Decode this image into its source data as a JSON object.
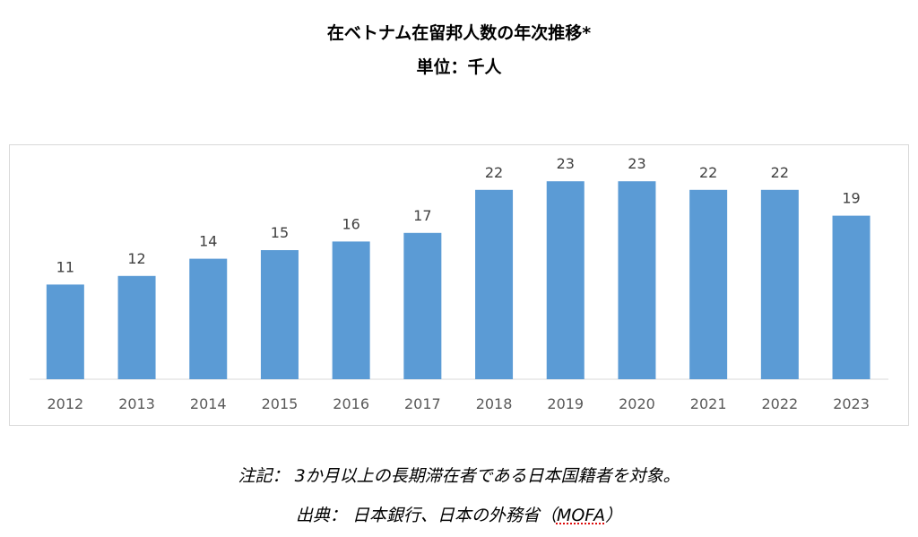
{
  "chart_data": {
    "type": "bar",
    "title": "在ベトナム在留邦人数の年次推移*",
    "subtitle": "単位：千人",
    "categories": [
      "2012",
      "2013",
      "2014",
      "2015",
      "2016",
      "2017",
      "2018",
      "2019",
      "2020",
      "2021",
      "2022",
      "2023"
    ],
    "values": [
      11,
      12,
      14,
      15,
      16,
      17,
      22,
      23,
      23,
      22,
      22,
      19
    ],
    "xlabel": "",
    "ylabel": "",
    "ylim": [
      0,
      25
    ],
    "grid": false,
    "legend": "none",
    "bar_color": "#5b9bd5"
  },
  "notes": {
    "note_label": "注記：",
    "note_text": "3か月以上の長期滞在者である日本国籍者を対象。",
    "source_label": "出典：",
    "source_text": "日本銀行、日本の外務省",
    "source_org": "MOFA"
  }
}
